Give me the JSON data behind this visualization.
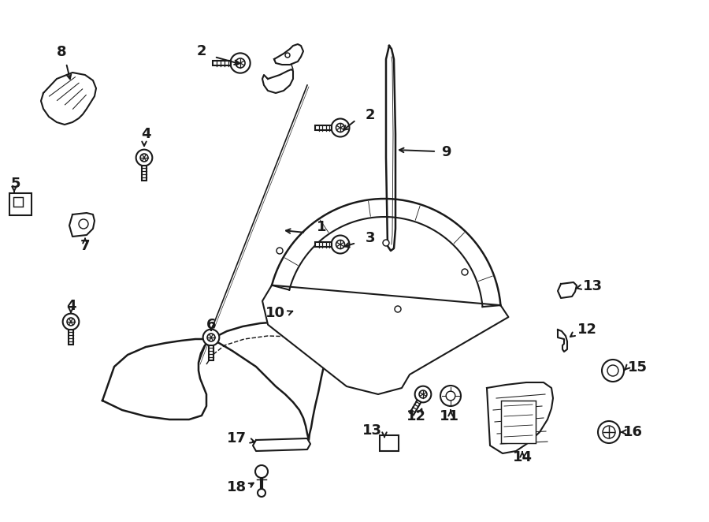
{
  "bg_color": "#ffffff",
  "line_color": "#1a1a1a",
  "lw": 1.5,
  "label_fontsize": 14,
  "figsize": [
    9.0,
    6.62
  ],
  "dpi": 100
}
